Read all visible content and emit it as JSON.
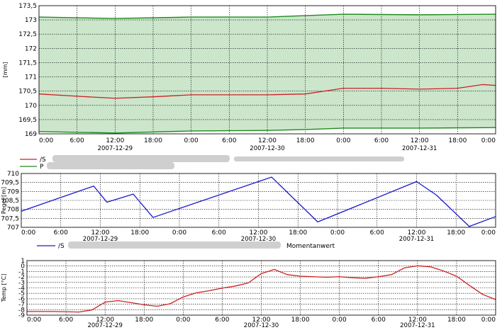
{
  "chart_data": [
    {
      "type": "area",
      "ylabel": "[mm]",
      "ylim": [
        169,
        173.5
      ],
      "yticks": [
        "173,5",
        "173",
        "172,5",
        "172",
        "171,5",
        "171",
        "170,5",
        "170",
        "169,5",
        "169"
      ],
      "xlim": [
        0,
        72
      ],
      "xticks": [
        "0:00",
        "6:00",
        "12:00",
        "18:00",
        "0:00",
        "6:00",
        "12:00",
        "18:00",
        "0:00",
        "6:00",
        "12:00",
        "18:00",
        "0:00"
      ],
      "date_labels": [
        {
          "x": 12,
          "text": "2007-12-29"
        },
        {
          "x": 36,
          "text": "2007-12-30"
        },
        {
          "x": 60,
          "text": "2007-12-31"
        }
      ],
      "grid": true,
      "legend_position": "bottom",
      "series": [
        {
          "name": "/S",
          "color": "#cc2222",
          "x": [
            0,
            6,
            12,
            18,
            24,
            30,
            36,
            42,
            48,
            54,
            60,
            66,
            70,
            72
          ],
          "y": [
            170.4,
            170.32,
            170.25,
            170.3,
            170.37,
            170.37,
            170.37,
            170.4,
            170.6,
            170.6,
            170.57,
            170.6,
            170.73,
            170.7
          ]
        },
        {
          "name": "P",
          "color": "#1f8a1f",
          "fill": "#cce6cc",
          "x": [
            0,
            12,
            24,
            36,
            42,
            48,
            60,
            72
          ],
          "y_upper": [
            173.1,
            173.05,
            173.1,
            173.1,
            173.15,
            173.2,
            173.18,
            173.2
          ],
          "y_lower": [
            169.08,
            169.03,
            169.1,
            169.12,
            169.15,
            169.2,
            169.2,
            169.22
          ]
        }
      ]
    },
    {
      "type": "line",
      "ylabel": "Pegel [m]",
      "ylim": [
        707,
        710
      ],
      "yticks": [
        "710",
        "709,5",
        "709",
        "708,5",
        "708",
        "707,5",
        "707"
      ],
      "xlim": [
        0,
        72
      ],
      "xticks": [
        "0:00",
        "6:00",
        "12:00",
        "18:00",
        "0:00",
        "6:00",
        "12:00",
        "18:00",
        "0:00",
        "6:00",
        "12:00",
        "18:00",
        "0:00"
      ],
      "date_labels": [
        {
          "x": 12,
          "text": "2007-12-29"
        },
        {
          "x": 36,
          "text": "2007-12-30"
        },
        {
          "x": 60,
          "text": "2007-12-31"
        }
      ],
      "grid": true,
      "legend_position": "bottom",
      "series": [
        {
          "name": "/S",
          "legend_suffix": "Momentanwert",
          "color": "#1a1acc",
          "x": [
            0,
            11,
            13,
            17,
            20,
            38,
            45,
            60,
            63,
            68,
            72
          ],
          "y": [
            707.9,
            709.3,
            708.4,
            708.85,
            707.55,
            709.8,
            707.3,
            709.55,
            708.8,
            707.05,
            707.6
          ]
        }
      ]
    },
    {
      "type": "line",
      "ylabel": "Temp [°C]",
      "ylim": [
        -9,
        1.5
      ],
      "yticks": [
        "1",
        "0",
        "-1",
        "-2",
        "-3",
        "-4",
        "-5",
        "-6",
        "-7",
        "-8",
        "-9"
      ],
      "xlim": [
        0,
        72
      ],
      "xticks": [
        "0:00",
        "6:00",
        "12:00",
        "18:00",
        "0:00",
        "6:00",
        "12:00",
        "18:00",
        "0:00",
        "6:00",
        "12:00",
        "18:00",
        "0:00"
      ],
      "date_labels": [
        {
          "x": 12,
          "text": "2007-12-29"
        },
        {
          "x": 36,
          "text": "2007-12-30"
        },
        {
          "x": 60,
          "text": "2007-12-31"
        }
      ],
      "grid": true,
      "series": [
        {
          "color": "#cc2222",
          "x": [
            0,
            4,
            8,
            10,
            12,
            14,
            16,
            18,
            20,
            22,
            24,
            26,
            28,
            30,
            32,
            34,
            36,
            38,
            40,
            42,
            44,
            46,
            48,
            50,
            52,
            54,
            56,
            58,
            60,
            62,
            64,
            66,
            68,
            70,
            72
          ],
          "y": [
            -8.3,
            -8.3,
            -8.4,
            -8.0,
            -6.5,
            -6.2,
            -6.6,
            -7.0,
            -7.3,
            -6.8,
            -5.5,
            -4.7,
            -4.3,
            -3.8,
            -3.4,
            -2.8,
            -1.0,
            -0.2,
            -1.2,
            -1.5,
            -1.6,
            -1.7,
            -1.6,
            -1.8,
            -1.9,
            -1.6,
            -1.2,
            0.1,
            0.5,
            0.3,
            -0.5,
            -1.5,
            -3.3,
            -5.0,
            -6.0
          ]
        }
      ]
    }
  ]
}
